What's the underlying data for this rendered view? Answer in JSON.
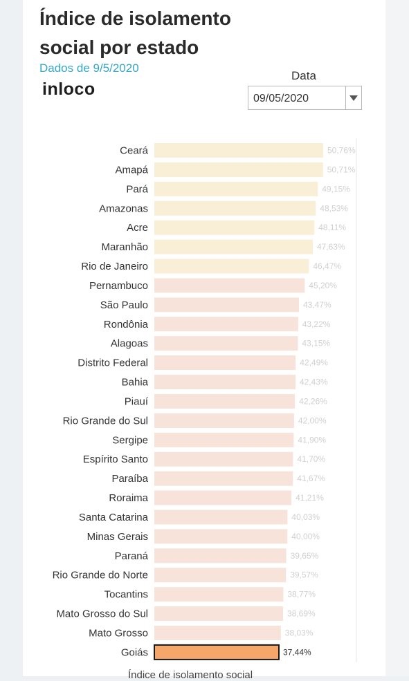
{
  "header": {
    "title": "Índice de isolamento social por estado",
    "subtitle": "Dados de 9/5/2020",
    "logo_text": "inloco"
  },
  "filter": {
    "label": "Data",
    "selected_value": "09/05/2020"
  },
  "colors": {
    "high": "#f8efd6",
    "medium": "#f7e3d9",
    "highlight": "#f4a66b",
    "highlight_border": "#1a1a1a",
    "label": "#333333",
    "value_label": "#d0d0d0",
    "value_label_highlight": "#333333"
  },
  "chart_data": {
    "type": "bar",
    "orientation": "horizontal",
    "categories": [
      "Ceará",
      "Amapá",
      "Pará",
      "Amazonas",
      "Acre",
      "Maranhão",
      "Rio de Janeiro",
      "Pernambuco",
      "São Paulo",
      "Rondônia",
      "Alagoas",
      "Distrito Federal",
      "Bahia",
      "Piauí",
      "Rio Grande do Sul",
      "Sergipe",
      "Espírito Santo",
      "Paraíba",
      "Roraima",
      "Santa Catarina",
      "Minas Gerais",
      "Paraná",
      "Rio Grande do Norte",
      "Tocantins",
      "Mato Grosso do Sul",
      "Mato Grosso",
      "Goiás"
    ],
    "values": [
      50.76,
      50.71,
      49.15,
      48.53,
      48.11,
      47.63,
      46.47,
      45.2,
      43.47,
      43.22,
      43.15,
      42.49,
      42.43,
      42.26,
      42.0,
      41.9,
      41.7,
      41.67,
      41.21,
      40.03,
      40.0,
      39.65,
      39.57,
      38.77,
      38.69,
      38.03,
      37.44
    ],
    "value_labels": [
      "50,76%",
      "50,71%",
      "49,15%",
      "48,53%",
      "48,11%",
      "47,63%",
      "46,47%",
      "45,20%",
      "43,47%",
      "43,22%",
      "43,15%",
      "42,49%",
      "42,43%",
      "42,26%",
      "42,00%",
      "41,90%",
      "41,70%",
      "41,67%",
      "41,21%",
      "40,03%",
      "40,00%",
      "39,65%",
      "39,57%",
      "38,77%",
      "38,69%",
      "38,03%",
      "37,44%"
    ],
    "color_groups": [
      "high",
      "high",
      "high",
      "high",
      "high",
      "high",
      "high",
      "medium",
      "medium",
      "medium",
      "medium",
      "medium",
      "medium",
      "medium",
      "medium",
      "medium",
      "medium",
      "medium",
      "medium",
      "medium",
      "medium",
      "medium",
      "medium",
      "medium",
      "medium",
      "medium",
      "highlight"
    ],
    "highlighted": "Goiás",
    "xlim": [
      0,
      60
    ],
    "xlabel": "Índice de isolamento social",
    "grid": false
  }
}
